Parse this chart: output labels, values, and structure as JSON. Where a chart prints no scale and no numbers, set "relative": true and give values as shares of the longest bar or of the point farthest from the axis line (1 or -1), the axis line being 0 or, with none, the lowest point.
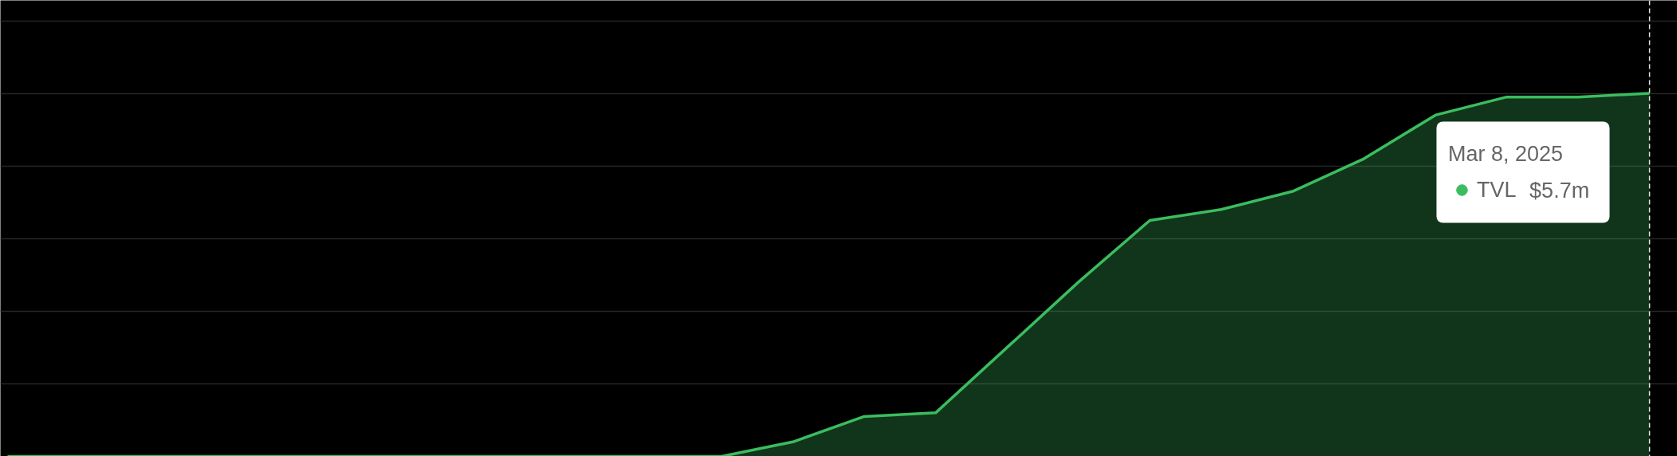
{
  "chart_data": {
    "type": "area",
    "categories": [
      null,
      null,
      null,
      null,
      null,
      null,
      null,
      null,
      null,
      null,
      null,
      null,
      null,
      null,
      null,
      null,
      null,
      null,
      null,
      null,
      null,
      null,
      null,
      null
    ],
    "series": [
      {
        "name": "TVL",
        "color": "#3bbd5f",
        "values": [
          0,
          0,
          0,
          0,
          0,
          0,
          0,
          0,
          0,
          0,
          0,
          0.04,
          0.11,
          0.12,
          0.3,
          0.48,
          0.65,
          0.68,
          0.73,
          0.82,
          0.94,
          0.99,
          0.99,
          1
        ]
      }
    ],
    "relative": true,
    "grid": "y",
    "legend": "top right",
    "legend_title": "Mar 8, 2025",
    "annotations": [
      "$5.7m"
    ]
  }
}
